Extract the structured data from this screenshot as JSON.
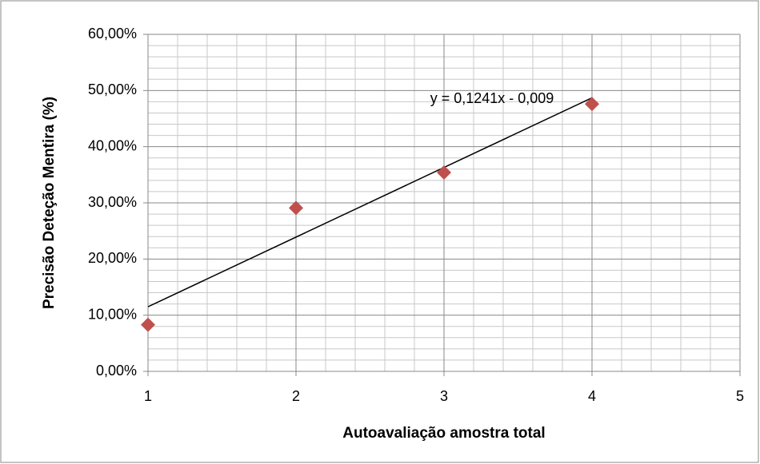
{
  "chart_data": {
    "type": "scatter",
    "xlabel": "Autoavaliação amostra total",
    "ylabel": "Precisão  Deteção Mentira (%)",
    "x": [
      1,
      2,
      3,
      4
    ],
    "values": [
      0.083,
      0.291,
      0.354,
      0.476
    ],
    "color": "#c0504d",
    "xlim": [
      1,
      5
    ],
    "xticks": [
      1,
      2,
      3,
      4,
      5
    ],
    "ylim": [
      0,
      0.6
    ],
    "yticks": [
      {
        "value": 0,
        "label": "0,00%"
      },
      {
        "value": 0.1,
        "label": "10,00%"
      },
      {
        "value": 0.2,
        "label": "20,00%"
      },
      {
        "value": 0.3,
        "label": "30,00%"
      },
      {
        "value": 0.4,
        "label": "40,00%"
      },
      {
        "value": 0.5,
        "label": "50,00%"
      },
      {
        "value": 0.6,
        "label": "60,00%"
      }
    ],
    "minor_xticks": [
      1.2,
      1.4,
      1.6,
      1.8,
      2.2,
      2.4,
      2.6,
      2.8,
      3.2,
      3.4,
      3.6,
      3.8,
      4.2,
      4.4,
      4.6,
      4.8
    ],
    "minor_yticks": [
      0.02,
      0.04,
      0.06,
      0.08,
      0.12,
      0.14,
      0.16,
      0.18,
      0.22,
      0.24,
      0.26,
      0.28,
      0.32,
      0.34,
      0.36,
      0.38,
      0.42,
      0.44,
      0.46,
      0.48,
      0.52,
      0.54,
      0.56,
      0.58
    ],
    "grid": true,
    "trendline": {
      "x": [
        1,
        4
      ],
      "values": [
        0.115,
        0.487
      ],
      "label": "y = 0,1241x - 0,009",
      "color": "#000000"
    }
  }
}
